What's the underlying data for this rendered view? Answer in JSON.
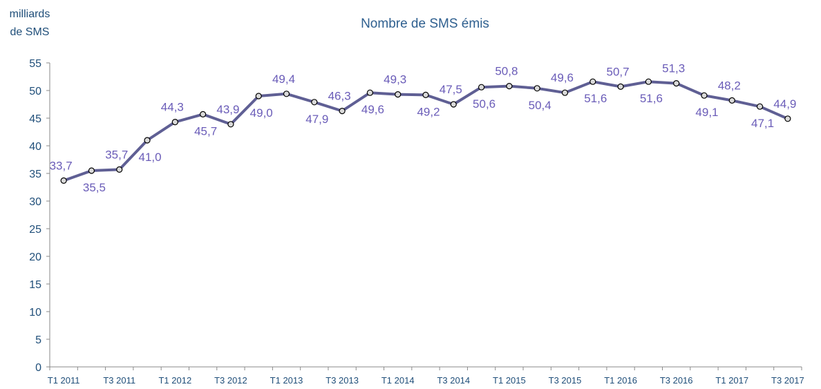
{
  "chart_data": {
    "type": "line",
    "title": "Nombre de SMS émis",
    "y_label": "milliards de SMS",
    "categories": [
      "T1 2011",
      null,
      "T3 2011",
      null,
      "T1 2012",
      null,
      "T3 2012",
      null,
      "T1 2013",
      null,
      "T3 2013",
      null,
      "T1 2014",
      null,
      "T3 2014",
      null,
      "T1 2015",
      null,
      "T3 2015",
      null,
      "T1 2016",
      null,
      "T3 2016",
      null,
      "T1 2017",
      null,
      "T3 2017"
    ],
    "series": [
      {
        "name": "Nombre de SMS émis",
        "color": "#5f5f94",
        "marker_color": "#d9d9d9",
        "label_color": "#6a5cb8",
        "values": [
          33.7,
          35.5,
          35.7,
          41.0,
          44.3,
          45.7,
          43.9,
          49.0,
          49.4,
          47.9,
          46.3,
          49.6,
          49.3,
          49.2,
          47.5,
          50.6,
          50.8,
          50.4,
          49.6,
          51.6,
          50.7,
          51.6,
          51.3,
          49.1,
          48.2,
          47.1,
          44.9
        ],
        "value_labels": [
          "33,7",
          "35,5",
          "35,7",
          "41,0",
          "44,3",
          "45,7",
          "43,9",
          "49,0",
          "49,4",
          "47,9",
          "46,3",
          "49,6",
          "49,3",
          "49,2",
          "47,5",
          "50,6",
          "50,8",
          "50,4",
          "49,6",
          "51,6",
          "50,7",
          "51,6",
          "51,3",
          "49,1",
          "48,2",
          "47,1",
          "44,9"
        ]
      }
    ],
    "ylim": [
      0,
      55
    ],
    "yticks": [
      0,
      5,
      10,
      15,
      20,
      25,
      30,
      35,
      40,
      45,
      50,
      55
    ],
    "grid": false
  }
}
